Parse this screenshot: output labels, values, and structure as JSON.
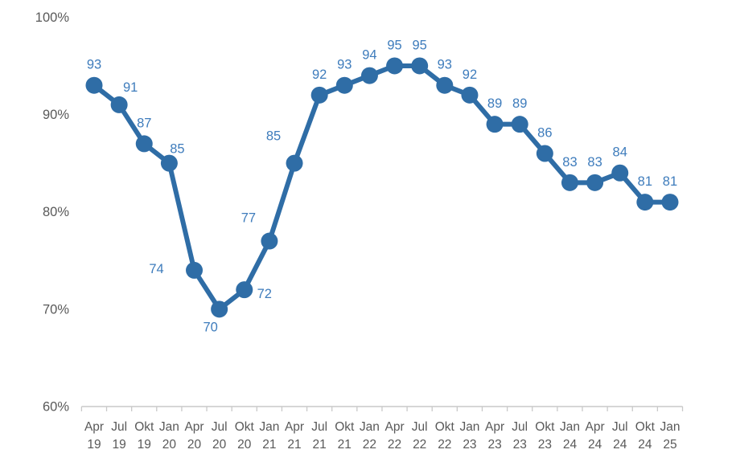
{
  "chart_data": {
    "type": "line",
    "title": "",
    "xlabel": "",
    "ylabel": "",
    "unit": "%",
    "categories": [
      {
        "month": "Apr",
        "year": "19"
      },
      {
        "month": "Jul",
        "year": "19"
      },
      {
        "month": "Okt",
        "year": "19"
      },
      {
        "month": "Jan",
        "year": "20"
      },
      {
        "month": "Apr",
        "year": "20"
      },
      {
        "month": "Jul",
        "year": "20"
      },
      {
        "month": "Okt",
        "year": "20"
      },
      {
        "month": "Jan",
        "year": "21"
      },
      {
        "month": "Apr",
        "year": "21"
      },
      {
        "month": "Jul",
        "year": "21"
      },
      {
        "month": "Okt",
        "year": "21"
      },
      {
        "month": "Jan",
        "year": "22"
      },
      {
        "month": "Apr",
        "year": "22"
      },
      {
        "month": "Jul",
        "year": "22"
      },
      {
        "month": "Okt",
        "year": "22"
      },
      {
        "month": "Jan",
        "year": "23"
      },
      {
        "month": "Apr",
        "year": "23"
      },
      {
        "month": "Jul",
        "year": "23"
      },
      {
        "month": "Okt",
        "year": "23"
      },
      {
        "month": "Jan",
        "year": "24"
      },
      {
        "month": "Apr",
        "year": "24"
      },
      {
        "month": "Jul",
        "year": "24"
      },
      {
        "month": "Okt",
        "year": "24"
      },
      {
        "month": "Jan",
        "year": "25"
      }
    ],
    "values": [
      93,
      91,
      87,
      85,
      74,
      70,
      72,
      77,
      85,
      92,
      93,
      94,
      95,
      95,
      93,
      92,
      89,
      89,
      86,
      83,
      83,
      84,
      81,
      81
    ],
    "data_labels": [
      "93",
      "91",
      "87",
      "85",
      "74",
      "70",
      "72",
      "77",
      "85",
      "92",
      "93",
      "94",
      "95",
      "95",
      "93",
      "92",
      "89",
      "89",
      "86",
      "83",
      "83",
      "84",
      "81",
      "81"
    ],
    "y_ticks": [
      60,
      70,
      80,
      90,
      100
    ],
    "y_tick_labels": [
      "60%",
      "70%",
      "80%",
      "90%",
      "100%"
    ],
    "ylim": [
      60,
      100
    ],
    "grid": false,
    "legend_position": "none",
    "label_offsets": {
      "1": [
        14,
        -22
      ],
      "3": [
        10,
        -18
      ],
      "4": [
        -47,
        -2
      ],
      "5": [
        -11,
        22
      ],
      "6": [
        25,
        5
      ],
      "7": [
        -26,
        -29
      ],
      "8": [
        -26,
        -34
      ]
    },
    "colors": {
      "line": "#2F6DA6",
      "marker": "#2F6DA6",
      "data_label": "#3E7CBC",
      "axis_text": "#595959",
      "axis_line": "#C9C9C9"
    }
  }
}
